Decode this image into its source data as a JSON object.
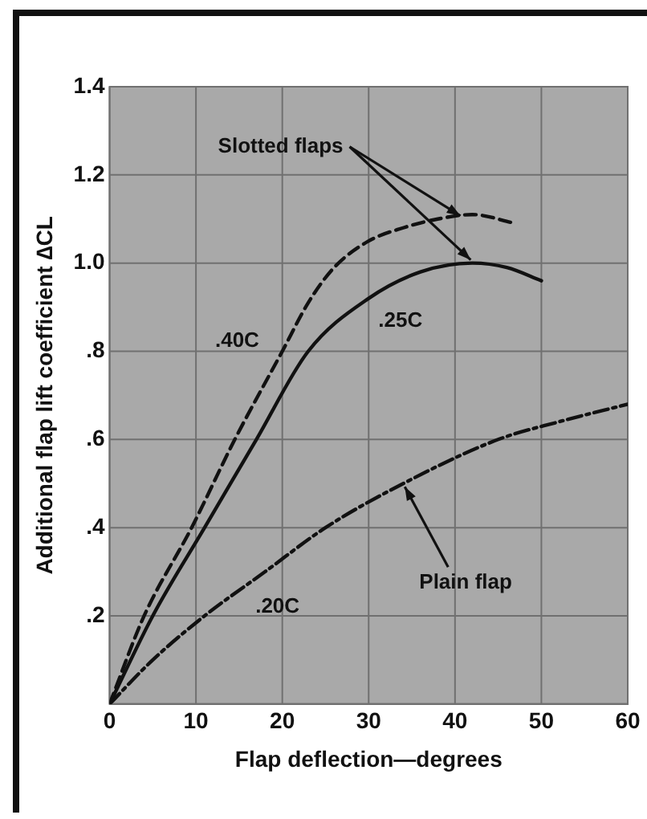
{
  "chart_data": {
    "type": "line",
    "xlabel": "Flap deflection—degrees",
    "ylabel": "Additional flap lift coefficient ∆CL",
    "xlim": [
      0,
      60
    ],
    "xticks": [
      0,
      10,
      20,
      30,
      40,
      50,
      60
    ],
    "ylim": [
      0,
      1.4
    ],
    "yticks": [
      {
        "value": 0,
        "label": null
      },
      {
        "value": 0.2,
        "label": ".2"
      },
      {
        "value": 0.4,
        "label": ".4"
      },
      {
        "value": 0.6,
        "label": ".6"
      },
      {
        "value": 0.8,
        "label": ".8"
      },
      {
        "value": 1.0,
        "label": "1.0"
      },
      {
        "value": 1.2,
        "label": "1.2"
      },
      {
        "value": 1.4,
        "label": "1.4"
      }
    ],
    "grid": true,
    "legend": false,
    "marker": "none",
    "series": [
      {
        "name": ".40C",
        "color": "#111111",
        "line_style": "dashed",
        "x": [
          0,
          4,
          9.5,
          14.5,
          20,
          23,
          26,
          30,
          34,
          38,
          42,
          47
        ],
        "values": [
          0,
          0.2,
          0.4,
          0.6,
          0.8,
          0.91,
          0.99,
          1.05,
          1.08,
          1.1,
          1.11,
          1.09
        ]
      },
      {
        "name": ".25C",
        "color": "#111111",
        "line_style": "solid",
        "x": [
          0,
          5,
          11,
          17,
          23,
          30,
          36,
          42,
          46,
          50
        ],
        "values": [
          0,
          0.2,
          0.4,
          0.6,
          0.8,
          0.92,
          0.98,
          1.0,
          0.99,
          0.96
        ]
      },
      {
        "name": ".20C",
        "color": "#111111",
        "line_style": "dashdot",
        "x": [
          0,
          5,
          11,
          18,
          25,
          34,
          45,
          52,
          60
        ],
        "values": [
          0,
          0.1,
          0.2,
          0.3,
          0.4,
          0.5,
          0.6,
          0.64,
          0.68
        ]
      }
    ],
    "annotations": [
      {
        "text": "Slotted flaps",
        "x": 41,
        "y": 1.1
      },
      {
        "text": "Plain flap",
        "x": 34,
        "y": 0.5
      }
    ]
  }
}
